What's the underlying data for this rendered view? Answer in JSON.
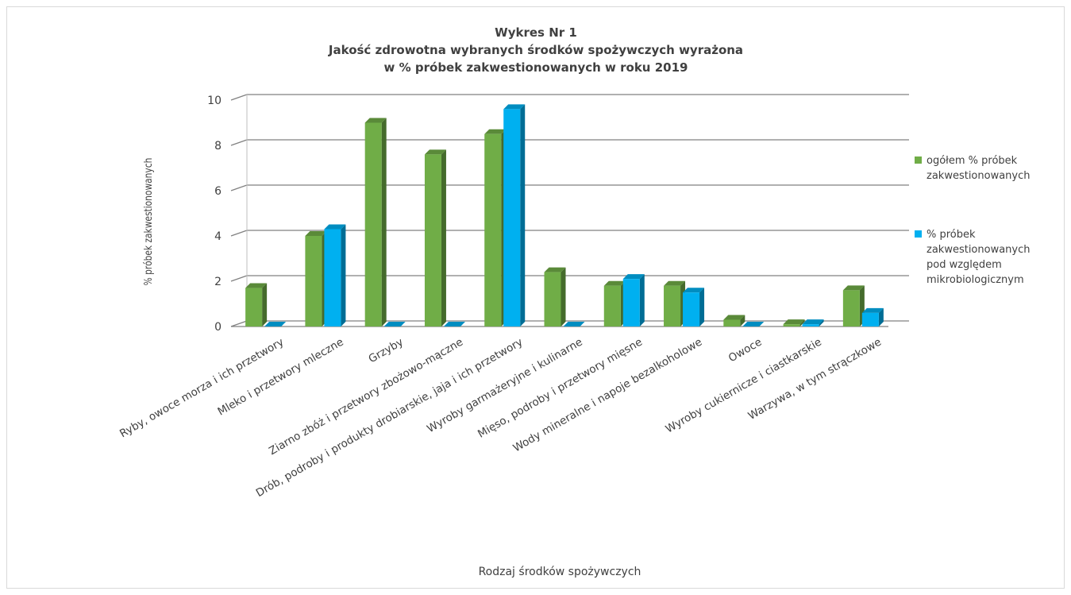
{
  "chart_data": {
    "type": "bar",
    "title_lines": [
      "Wykres Nr 1",
      "Jakość zdrowotna wybranych środków spożywczych wyrażona",
      "w % próbek zakwestionowanych w roku 2019"
    ],
    "xlabel": "Rodzaj środków spożywczych",
    "ylabel": "% próbek zakwestionowanych",
    "ylim": [
      0,
      10
    ],
    "yticks": [
      "0",
      "2",
      "4",
      "6",
      "8",
      "10"
    ],
    "grid": true,
    "legend_position": "right",
    "categories": [
      "Ryby, owoce morza i ich przetwory",
      "Mleko i przetwory mleczne",
      "Grzyby",
      "Ziarno zbóż i przetwory zbożowo-mączne",
      "Drób, podroby i produkty drobiarskie, jaja i ich przetwory",
      "Wyroby garmażeryjne i kulinarne",
      "Mięso, podroby i przetwory mięsne",
      "Wody mineralne i napoje bezalkoholowe",
      "Owoce",
      "Wyroby cukiernicze i ciastkarskie",
      "Warzywa, w tym strączkowe"
    ],
    "series": [
      {
        "name": "ogółem % próbek zakwestionowanych",
        "legend_lines": [
          "ogółem % próbek",
          "zakwestionowanych"
        ],
        "color": "#70ad47",
        "values": [
          1.7,
          4.0,
          9.0,
          7.6,
          8.5,
          2.4,
          1.8,
          1.8,
          0.3,
          0.1,
          1.6
        ]
      },
      {
        "name": "% próbek zakwestionowanych pod względem mikrobiologicznym",
        "legend_lines": [
          "% próbek",
          "zakwestionowanych",
          "pod względem",
          "mikrobiologicznym"
        ],
        "color": "#00b0f0",
        "values": [
          0.0,
          4.3,
          0.0,
          0.0,
          9.6,
          0.0,
          2.1,
          1.5,
          0.0,
          0.1,
          0.6
        ]
      }
    ]
  }
}
